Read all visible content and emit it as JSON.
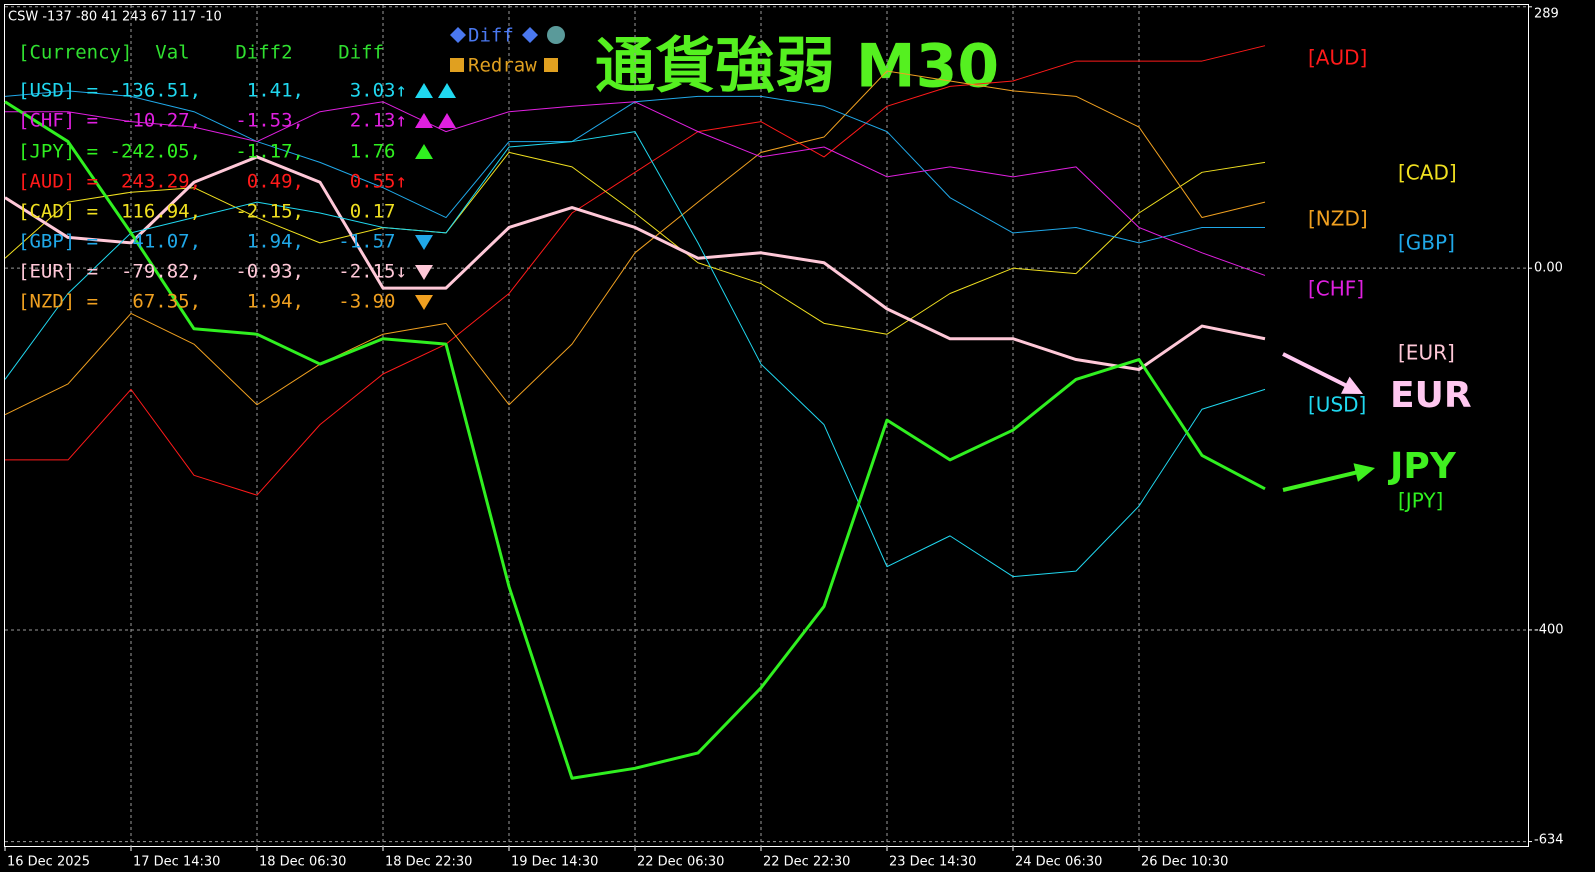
{
  "chart_data": {
    "type": "line",
    "title": "通貨強弱  M30",
    "indicator_label": "CSW -137 -80 41 243 67 117 -10",
    "categories": [
      "16 Dec 2025",
      null,
      "17 Dec 14:30",
      null,
      "18 Dec 06:30",
      null,
      "18 Dec 22:30",
      null,
      "19 Dec 14:30",
      null,
      "22 Dec 06:30",
      null,
      "22 Dec 22:30",
      null,
      "23 Dec 14:30",
      null,
      "24 Dec 06:30",
      null,
      "26 Dec 10:30",
      null,
      null
    ],
    "ylim": [
      -640,
      291
    ],
    "yticks": [
      289,
      {
        "value": 0,
        "label": "0.00"
      },
      -400,
      -634
    ],
    "grid": true,
    "series": [
      {
        "name": "[AUD]",
        "color": "#ff1a1a",
        "line_width": 1,
        "values": [
          -212,
          -212,
          -134,
          -229,
          -251,
          -173,
          -117,
          -84,
          -28,
          61,
          106,
          151,
          162,
          123,
          179,
          201,
          207,
          229,
          229,
          229,
          246
        ]
      },
      {
        "name": "[CAD]",
        "color": "#f0e020",
        "line_width": 1,
        "values": [
          11,
          73,
          84,
          89,
          56,
          28,
          45,
          39,
          128,
          112,
          61,
          6,
          -17,
          -61,
          -73,
          -28,
          0,
          -6,
          61,
          106,
          117
        ]
      },
      {
        "name": "[NZD]",
        "color": "#f0a020",
        "line_width": 1,
        "values": [
          -162,
          -128,
          -50,
          -84,
          -151,
          -106,
          -73,
          -61,
          -151,
          -84,
          17,
          73,
          128,
          145,
          218,
          207,
          196,
          190,
          156,
          56,
          73
        ]
      },
      {
        "name": "[GBP]",
        "color": "#20a8e8",
        "line_width": 1,
        "values": [
          190,
          196,
          190,
          173,
          140,
          117,
          89,
          56,
          140,
          140,
          184,
          190,
          190,
          179,
          151,
          78,
          39,
          45,
          28,
          45,
          45
        ]
      },
      {
        "name": "[CHF]",
        "color": "#e020e0",
        "line_width": 1,
        "values": [
          173,
          173,
          162,
          156,
          140,
          173,
          184,
          151,
          173,
          179,
          184,
          151,
          123,
          134,
          101,
          112,
          101,
          112,
          45,
          17,
          -8
        ]
      },
      {
        "name": "[EUR]",
        "color": "#ffc8d8",
        "line_width": 3,
        "values": [
          78,
          34,
          28,
          95,
          123,
          95,
          -22,
          -22,
          45,
          67,
          45,
          11,
          17,
          6,
          -45,
          -78,
          -78,
          -101,
          -112,
          -64,
          -78
        ]
      },
      {
        "name": "[USD]",
        "color": "#20d8f0",
        "line_width": 1,
        "values": [
          -123,
          -28,
          39,
          56,
          73,
          61,
          45,
          39,
          134,
          140,
          151,
          28,
          -106,
          -173,
          -330,
          -296,
          -341,
          -335,
          -263,
          -156,
          -134
        ]
      },
      {
        "name": "[JPY]",
        "color": "#30f020",
        "line_width": 3,
        "values": [
          184,
          140,
          39,
          -67,
          -73,
          -106,
          -78,
          -84,
          -352,
          -564,
          -553,
          -536,
          -464,
          -374,
          -168,
          -212,
          -179,
          -123,
          -101,
          -207,
          -244
        ]
      }
    ],
    "annotations": [
      {
        "text": "EUR",
        "color": "#ffc8f0"
      },
      {
        "text": "JPY",
        "color": "#40f020"
      }
    ],
    "panel": {
      "header": {
        "text": "[Currency]  Val    Diff2    Diff",
        "color": "#30e030"
      },
      "rows": [
        {
          "text": "[USD] = -136.51,    1.41,    3.03↑",
          "color": "#20d8f0"
        },
        {
          "text": "[CHF] =  -10.27,   -1.53,    2.13↑",
          "color": "#e020e0"
        },
        {
          "text": "[JPY] = -242.05,   -1.17,    1.76",
          "color": "#30f020"
        },
        {
          "text": "[AUD] =  243.29,    0.49,    0.55↑",
          "color": "#ff1a1a"
        },
        {
          "text": "[CAD] =  116.94,   -2.15,    0.17",
          "color": "#f0e020"
        },
        {
          "text": "[GBP] =   41.07,    1.94,   -1.57",
          "color": "#20a8e8"
        },
        {
          "text": "[EUR] =  -79.82,   -0.93,   -2.15↓",
          "color": "#ffc8d8"
        },
        {
          "text": "[NZD] =   67.35,    1.94,   -3.90",
          "color": "#f0a020"
        }
      ],
      "buttons": [
        {
          "text": "Diff",
          "color": "#4a78f0"
        },
        {
          "text": "Redraw",
          "color": "#e0a020"
        }
      ]
    }
  }
}
